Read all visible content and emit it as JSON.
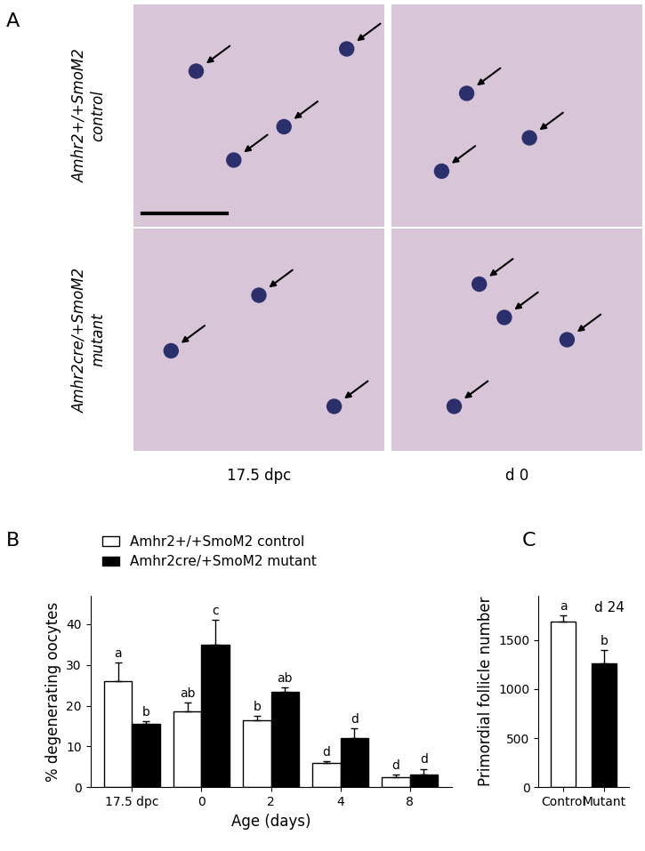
{
  "panel_a": {
    "label": "A",
    "rows": [
      [
        "Amhr2+/+SmoM2",
        "control"
      ],
      [
        "Amhr2cre/+SmoM2",
        "mutant"
      ]
    ],
    "columns": [
      "17.5 dpc",
      "d 0"
    ]
  },
  "chart_data": [
    {
      "type": "bar",
      "panel": "B",
      "categories": [
        "17.5 dpc",
        "0",
        "2",
        "4",
        "8"
      ],
      "x_label": "Age (days)",
      "y_label": "% degenerating oocytes",
      "ylim": [
        0,
        47
      ],
      "yticks": [
        0,
        10,
        20,
        30,
        40
      ],
      "legend": "upper left",
      "series": [
        {
          "name": "Amhr2+/+SmoM2 control",
          "color": "#ffffff",
          "values": [
            26,
            18.5,
            16.5,
            6,
            2.5
          ],
          "errors": [
            4.5,
            2.2,
            1,
            0.3,
            0.5
          ],
          "letters": [
            "a",
            "ab",
            "b",
            "d",
            "d"
          ]
        },
        {
          "name": "Amhr2cre/+SmoM2 mutant",
          "color": "#000000",
          "values": [
            15.5,
            35,
            23.5,
            12,
            3
          ],
          "errors": [
            0.7,
            6,
            1,
            2.5,
            1.5
          ],
          "letters": [
            "b",
            "c",
            "ab",
            "d",
            "d"
          ]
        }
      ]
    },
    {
      "type": "bar",
      "panel": "C",
      "annotation": "d 24",
      "categories": [
        "Control",
        "Mutant"
      ],
      "y_label": "Primordial follicle number",
      "ylim": [
        0,
        1950
      ],
      "yticks": [
        0,
        500,
        1000,
        1500
      ],
      "values": [
        1690,
        1265
      ],
      "errors": [
        60,
        130
      ],
      "letters": [
        "a",
        "b"
      ],
      "colors": [
        "#ffffff",
        "#000000"
      ]
    }
  ]
}
